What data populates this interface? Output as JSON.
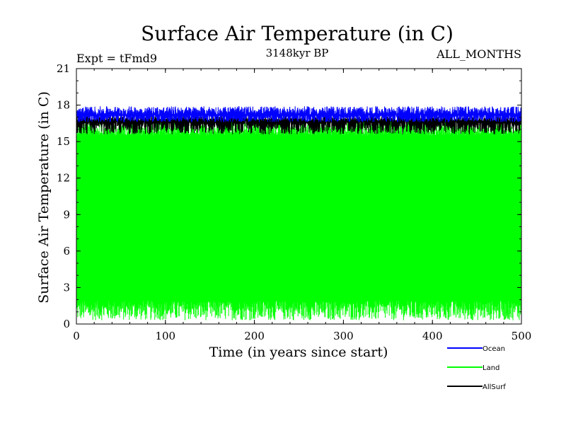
{
  "chart_data": {
    "type": "line",
    "title": "Surface Air Temperature (in C)",
    "subtitle": "3148kyr BP",
    "expt_label": "Expt = tFmd9",
    "months_label": "ALL_MONTHS",
    "xlabel": "Time (in years since start)",
    "ylabel": "Surface Air Temperature (in C)",
    "xlim": [
      0,
      500
    ],
    "ylim": [
      0,
      21
    ],
    "xticks": [
      "0",
      "100",
      "200",
      "300",
      "400",
      "500"
    ],
    "yticks": [
      "0",
      "3",
      "6",
      "9",
      "12",
      "15",
      "18",
      "21"
    ],
    "grid": false,
    "legend_position": "bottom-right",
    "series": [
      {
        "name": "Ocean",
        "color": "#0000ff",
        "mean": 17.2,
        "low": 16.6,
        "high": 17.9
      },
      {
        "name": "Land",
        "color": "#00ff00",
        "mean": 8.5,
        "low": 0.3,
        "high": 16.7
      },
      {
        "name": "AllSurf",
        "color": "#000000",
        "mean": 16.7,
        "low": 15.6,
        "high": 17.1
      }
    ]
  }
}
